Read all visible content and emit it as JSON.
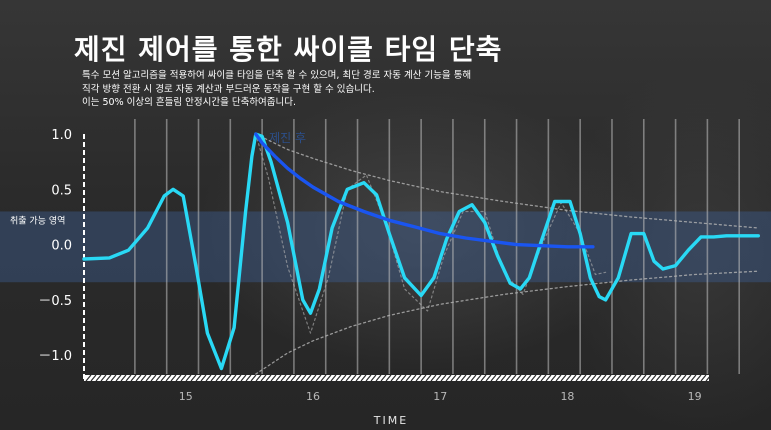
{
  "page": {
    "title": "제진 제어를 통한 싸이클 타임 단축",
    "description": [
      "특수 모션 알고리즘을 적용하여 싸이클 타임을 단축 할 수 있으며, 최단 경로 자동 계산 기능을 통해",
      "직각 방향 전환 시 경로 자동 계산과 부드러운 동작을 구현 할 수 있습니다.",
      "이는 50% 이상의 흔들림 안정시간을 단축하여줍니다."
    ]
  },
  "chart_data": {
    "type": "line",
    "xlabel": "TIME",
    "ylabel": "",
    "x_ticks": [
      15,
      16,
      17,
      18,
      19
    ],
    "y_ticks": [
      1.0,
      0.5,
      0.0,
      -0.5,
      -1.0
    ],
    "y_tick_labels": [
      "1.0",
      "0.5",
      "0.0",
      "－0.5",
      "－1.0"
    ],
    "xlim": [
      14.2,
      19.6
    ],
    "ylim": [
      -1.17,
      1.1
    ],
    "grid": true,
    "band": {
      "label": "취출 가능 영역",
      "y_range": [
        -0.34,
        0.3
      ]
    },
    "annotations": [
      {
        "text": "제진 후",
        "x": 15.8,
        "y": 1.0
      }
    ],
    "colors": {
      "main": "#29d9f5",
      "damped": "#1a55f0",
      "envelope": "#b4b4b4",
      "band": "#3b5a8c"
    },
    "series": [
      {
        "style": "cyan",
        "x": [
          14.2,
          14.4,
          14.55,
          14.7,
          14.83,
          14.9,
          14.98,
          15.08,
          15.17,
          15.28,
          15.38,
          15.47,
          15.52,
          15.55,
          15.6,
          15.67,
          15.8,
          15.92,
          15.98,
          16.05,
          16.15,
          16.27,
          16.4,
          16.5,
          16.6,
          16.72,
          16.85,
          16.95,
          17.05,
          17.15,
          17.25,
          17.35,
          17.45,
          17.55,
          17.63,
          17.7,
          17.8,
          17.9,
          18.02,
          18.1,
          18.18,
          18.25,
          18.3,
          18.4,
          18.5,
          18.6,
          18.68,
          18.75,
          18.85,
          18.95,
          19.05,
          19.15,
          19.25,
          19.35,
          19.45,
          19.5
        ],
        "y": [
          -0.13,
          -0.12,
          -0.05,
          0.15,
          0.44,
          0.5,
          0.44,
          -0.2,
          -0.8,
          -1.12,
          -0.75,
          0.3,
          0.8,
          1.0,
          0.98,
          0.75,
          0.2,
          -0.5,
          -0.62,
          -0.4,
          0.15,
          0.5,
          0.56,
          0.45,
          0.1,
          -0.3,
          -0.46,
          -0.3,
          0.05,
          0.3,
          0.36,
          0.2,
          -0.1,
          -0.35,
          -0.4,
          -0.3,
          0.05,
          0.39,
          0.39,
          0.1,
          -0.3,
          -0.47,
          -0.5,
          -0.3,
          0.1,
          0.1,
          -0.15,
          -0.22,
          -0.19,
          -0.05,
          0.07,
          0.07,
          0.08,
          0.08,
          0.08,
          0.08
        ]
      },
      {
        "style": "blue",
        "x": [
          15.55,
          15.6,
          15.7,
          15.8,
          15.9,
          16.0,
          16.2,
          16.4,
          16.6,
          16.8,
          17.0,
          17.2,
          17.4,
          17.6,
          17.8,
          18.0,
          18.2
        ],
        "y": [
          1.0,
          0.92,
          0.8,
          0.69,
          0.6,
          0.52,
          0.39,
          0.3,
          0.22,
          0.16,
          0.1,
          0.06,
          0.03,
          0.0,
          -0.01,
          -0.02,
          -0.02
        ]
      },
      {
        "style": "envelope-top",
        "x": [
          15.55,
          15.8,
          16.0,
          16.3,
          16.6,
          17.0,
          17.5,
          18.0,
          18.5,
          19.0,
          19.5
        ],
        "y": [
          1.0,
          0.86,
          0.78,
          0.67,
          0.58,
          0.48,
          0.39,
          0.31,
          0.25,
          0.2,
          0.15
        ]
      },
      {
        "style": "envelope-bottom",
        "x": [
          15.55,
          15.8,
          16.0,
          16.3,
          16.6,
          17.0,
          17.5,
          18.0,
          18.5,
          19.0,
          19.5
        ],
        "y": [
          -1.17,
          -0.98,
          -0.87,
          -0.74,
          -0.64,
          -0.54,
          -0.45,
          -0.38,
          -0.32,
          -0.27,
          -0.24
        ]
      },
      {
        "style": "ghost",
        "x": [
          15.55,
          15.65,
          15.8,
          15.98,
          16.12,
          16.27,
          16.42,
          16.57,
          16.72,
          16.9,
          17.03,
          17.18,
          17.35,
          17.5,
          17.65,
          17.8,
          17.95,
          18.1,
          18.22,
          18.3
        ],
        "y": [
          1.0,
          0.6,
          -0.2,
          -0.8,
          -0.3,
          0.5,
          0.63,
          0.2,
          -0.4,
          -0.6,
          -0.1,
          0.3,
          0.3,
          -0.25,
          -0.45,
          0.0,
          0.38,
          0.1,
          -0.27,
          -0.25
        ]
      }
    ]
  }
}
